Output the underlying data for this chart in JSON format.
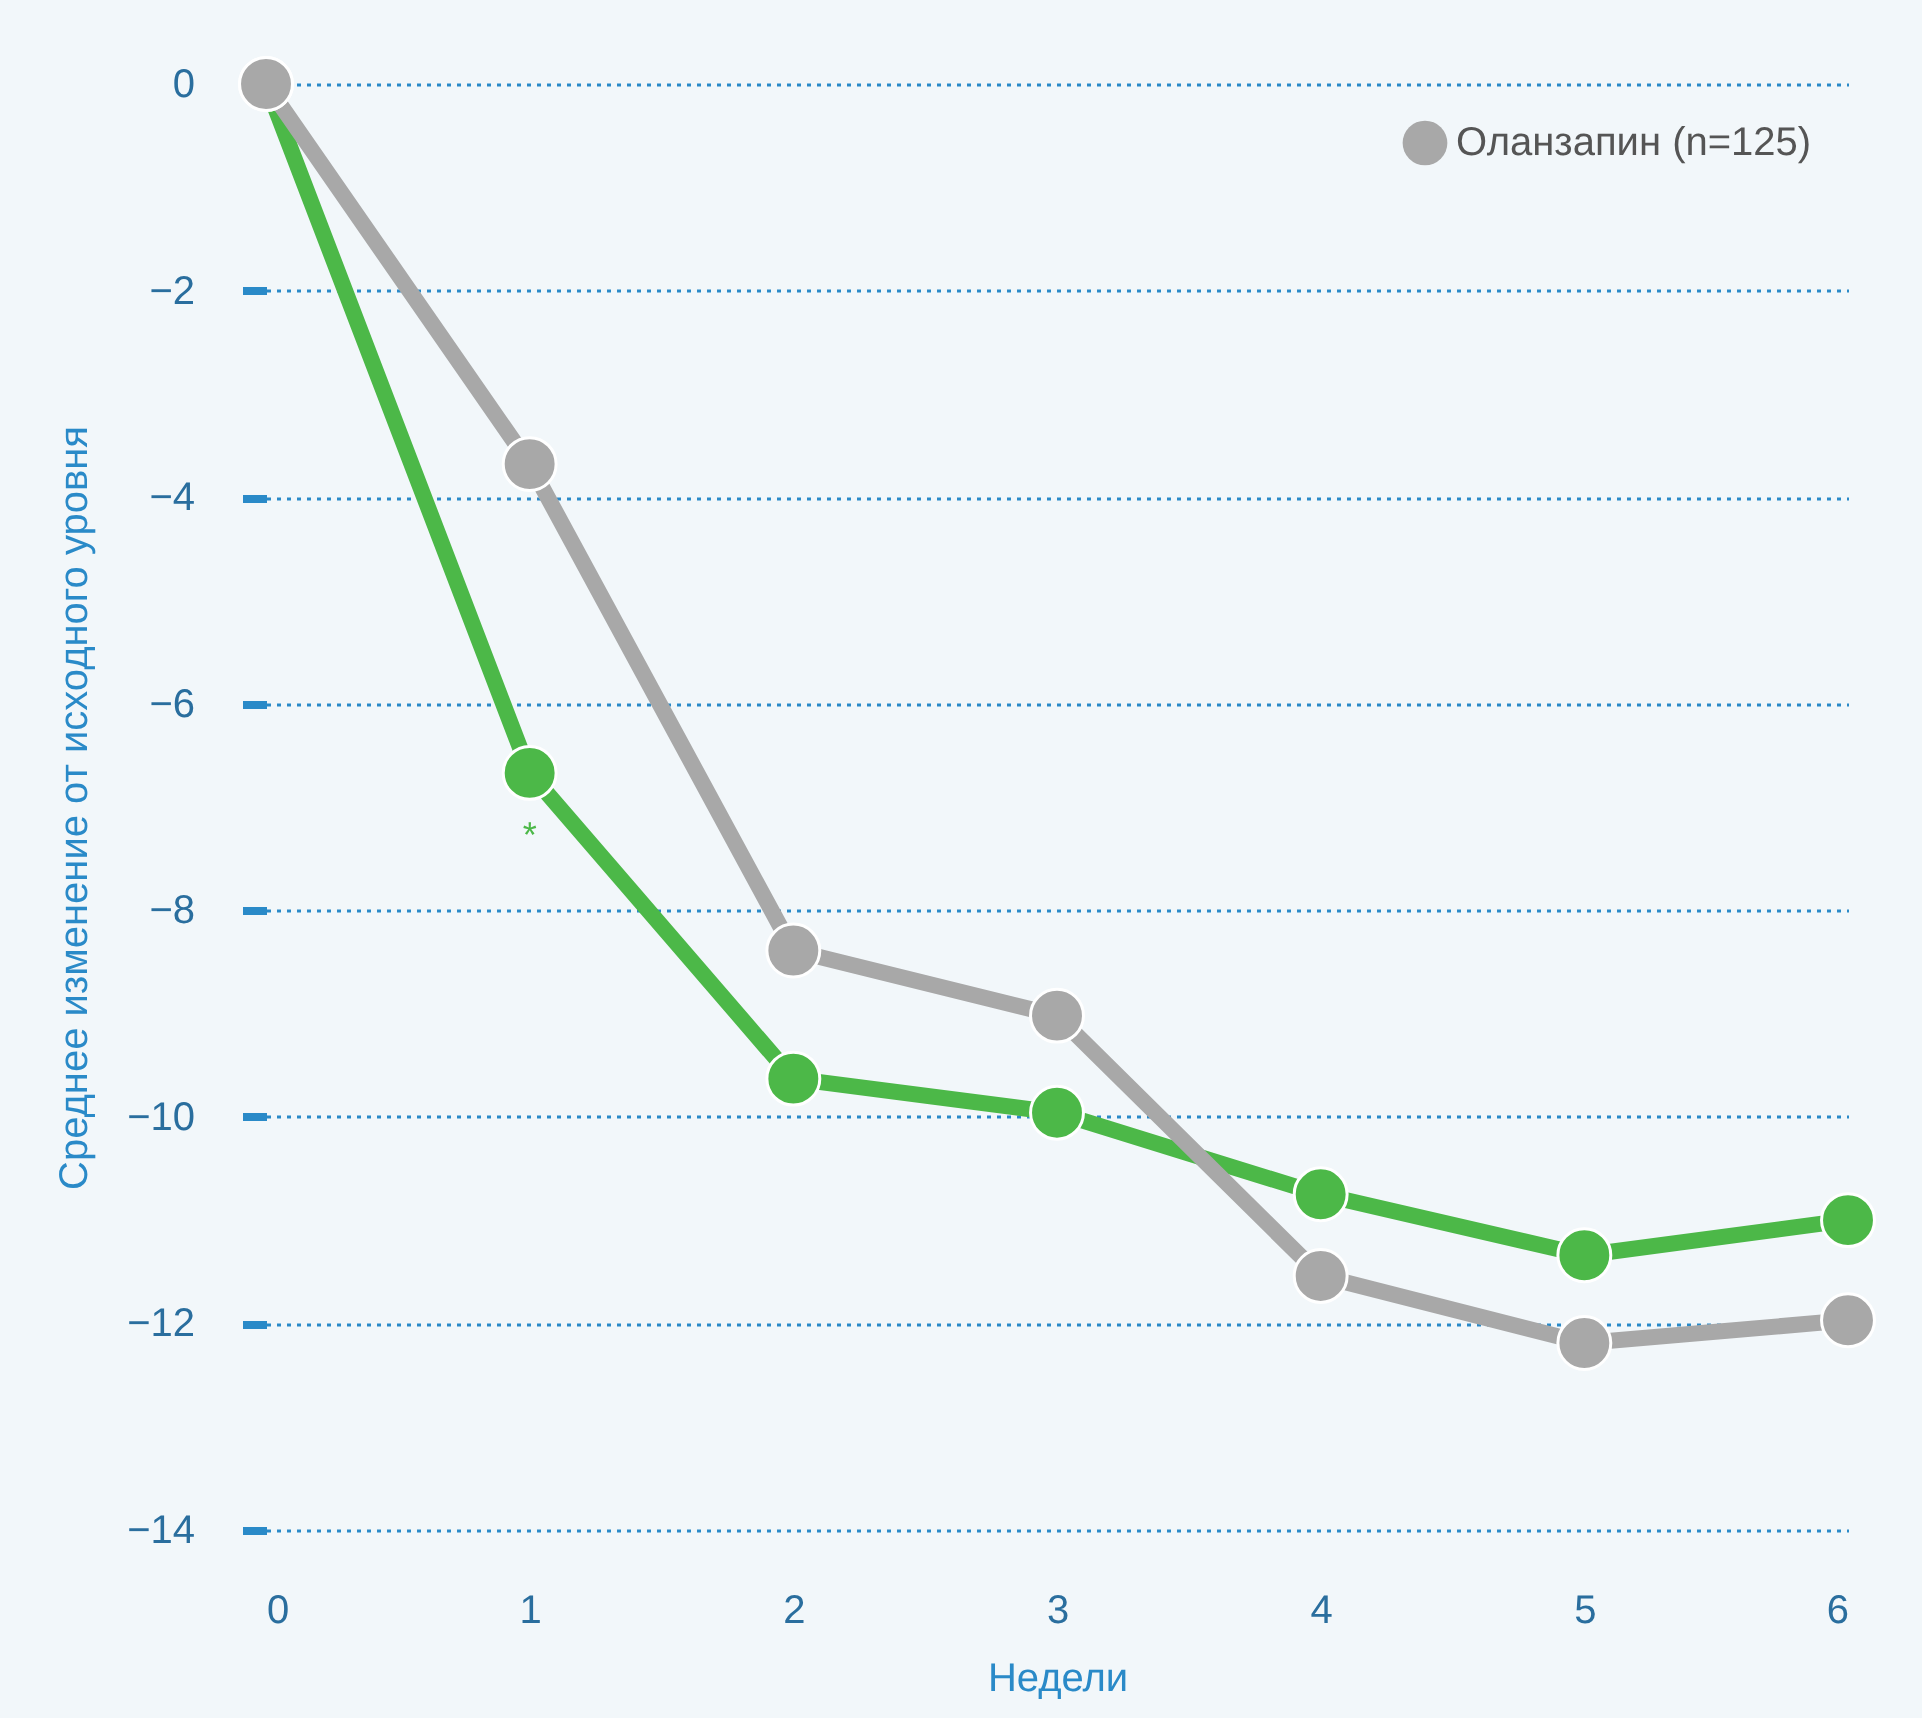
{
  "chart_data": {
    "type": "line",
    "xlabel": "Недели",
    "ylabel": "Среднее изменение от исходного уровня",
    "x": [
      0,
      1,
      2,
      3,
      4,
      5,
      6
    ],
    "xlim": [
      0,
      6
    ],
    "xticks": [
      0,
      1,
      2,
      3,
      4,
      5,
      6
    ],
    "ylim": [
      -14,
      0
    ],
    "yticks": [
      -14,
      -12,
      -10,
      -8,
      -6,
      -4,
      -2,
      0
    ],
    "series": [
      {
        "color": "#4cb848",
        "values": [
          0,
          -6.67,
          -9.63,
          -9.96,
          -10.75,
          -11.34,
          -11.0
        ]
      },
      {
        "name": "Оланзапин (n=125)",
        "color": "#a8a8a8",
        "values": [
          0,
          -3.68,
          -8.39,
          -9.02,
          -11.54,
          -12.19,
          -11.97
        ]
      }
    ],
    "annotations": [
      {
        "text": "*",
        "x": 1,
        "y": -6.67
      }
    ],
    "grid": "y",
    "legend": "top right",
    "marker": "circle",
    "line_style": "solid"
  }
}
